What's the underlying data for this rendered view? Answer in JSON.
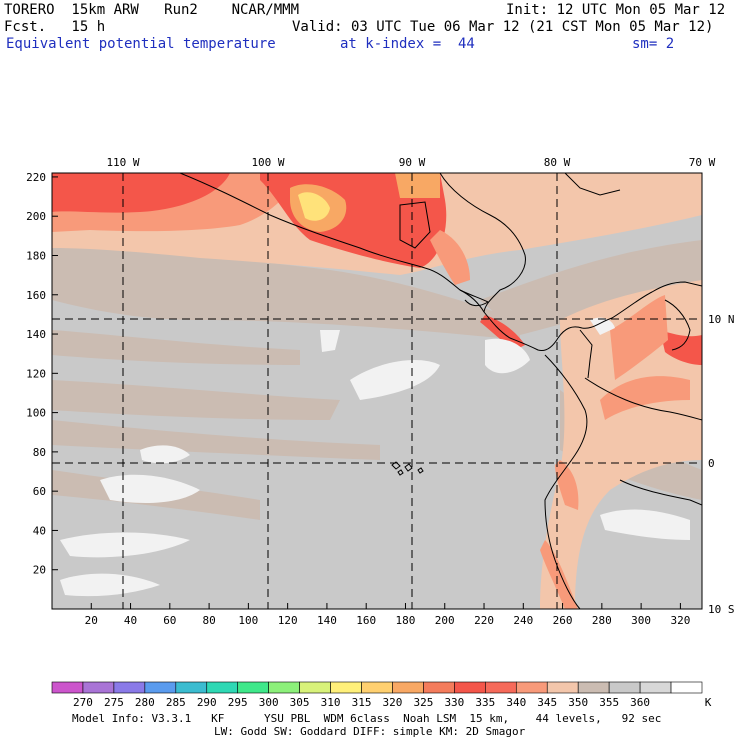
{
  "header": {
    "model": "TORERO  15km ARW   Run2    NCAR/MMM",
    "init": "Init: 12 UTC Mon 05 Mar 12",
    "fcst": "Fcst.   15 h",
    "valid": "Valid: 03 UTC Tue 06 Mar 12 (21 CST Mon 05 Mar 12)",
    "field": "Equivalent potential temperature",
    "level": "at k-index =  44",
    "smooth": "sm= 2"
  },
  "map": {
    "x_ticks": [
      "20",
      "40",
      "60",
      "80",
      "100",
      "120",
      "140",
      "160",
      "180",
      "200",
      "220",
      "240",
      "260",
      "280",
      "300",
      "320"
    ],
    "y_ticks": [
      "20",
      "40",
      "60",
      "80",
      "100",
      "120",
      "140",
      "160",
      "180",
      "200",
      "220"
    ],
    "lon_labels": [
      "110 W",
      "100 W",
      "90 W",
      "80 W",
      "70 W"
    ],
    "lat_labels": [
      "10 N",
      "0",
      "10 S"
    ],
    "colors": {
      "base": "#c9c9c9",
      "tan": "#cbbcb2",
      "peach": "#f3c6ab",
      "salmon": "#f89a7a",
      "red": "#f4564a",
      "orange": "#f8a864",
      "yellow": "#ffe27a",
      "white": "#f2f2f2"
    }
  },
  "legend": {
    "bins": [
      "#cc55cc",
      "#a974d6",
      "#8a7ae8",
      "#5a9bee",
      "#3bbcd0",
      "#2ed8b4",
      "#3fe88a",
      "#8cf07a",
      "#d8f27a",
      "#fff07a",
      "#ffd070",
      "#f8a864",
      "#f47c5c",
      "#f4564a",
      "#f66a5a",
      "#f89a7a",
      "#f3c6ab",
      "#cbbcb2",
      "#c9c9c9",
      "#d8d8d8",
      "#ffffff"
    ],
    "labels": [
      "270",
      "275",
      "280",
      "285",
      "290",
      "295",
      "300",
      "305",
      "310",
      "315",
      "320",
      "325",
      "330",
      "335",
      "340",
      "345",
      "350",
      "355",
      "360"
    ],
    "unit": "K"
  },
  "footer": {
    "line1": "Model Info: V3.3.1   KF      YSU PBL  WDM 6class  Noah LSM  15 km,    44 levels,   92 sec",
    "line2": "LW: Godd SW: Goddard DIFF: simple KM: 2D Smagor"
  }
}
